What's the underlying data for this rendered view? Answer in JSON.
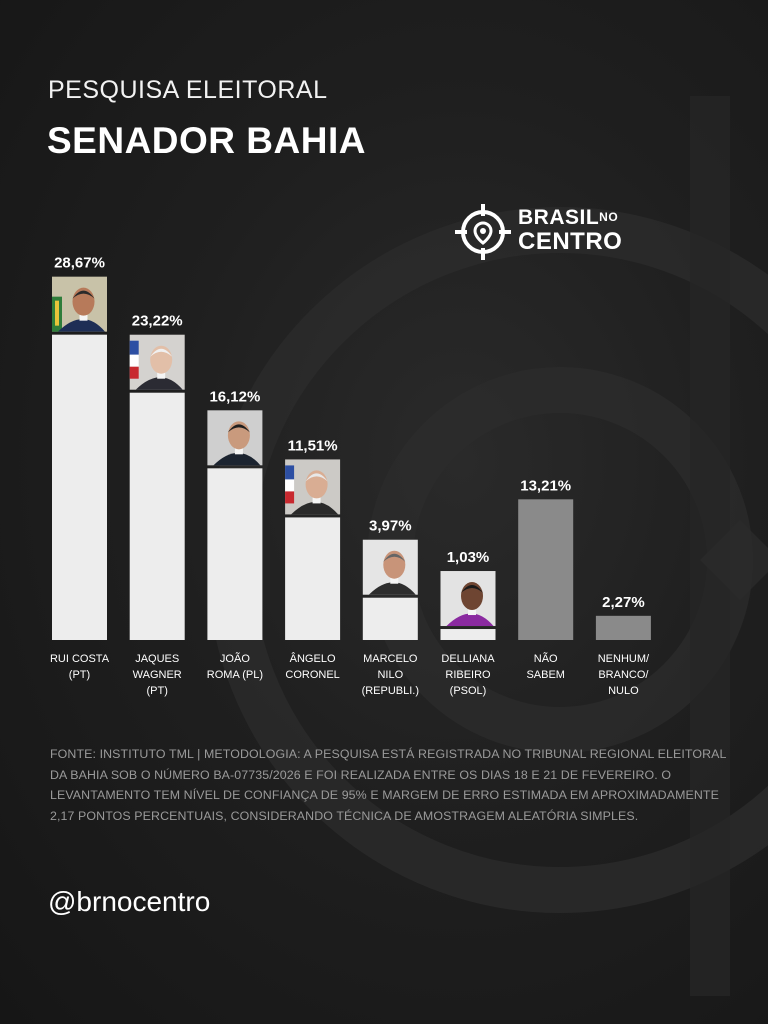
{
  "header": {
    "kicker": "PESQUISA ELEITORAL",
    "title": "SENADOR BAHIA"
  },
  "brand": {
    "line1": "BRASIL",
    "line1_small": "NO",
    "line2": "CENTRO"
  },
  "colors": {
    "background": "#1f1f1f",
    "candidate_bar": "#ededed",
    "other_bar": "#8a8a8a",
    "text": "#ffffff",
    "note_text": "#9a9a9a"
  },
  "chart_data": {
    "type": "bar",
    "title": "SENADOR BAHIA",
    "xlabel": "",
    "ylabel": "",
    "grid": false,
    "ylim": [
      0,
      30
    ],
    "categories": [
      [
        "RUI COSTA",
        "(PT)"
      ],
      [
        "JAQUES",
        "WAGNER",
        "(PT)"
      ],
      [
        "JOÃO",
        "ROMA (PL)"
      ],
      [
        "ÂNGELO",
        "CORONEL"
      ],
      [
        "MARCELO",
        "NILO",
        "(REPUBLI.)"
      ],
      [
        "DELLIANA",
        "RIBEIRO",
        "(PSOL)"
      ],
      [
        "NÃO",
        "SABEM"
      ],
      [
        "NENHUM/",
        "BRANCO/",
        "NULO"
      ]
    ],
    "values": [
      28.67,
      23.22,
      16.12,
      11.51,
      3.97,
      1.03,
      13.21,
      2.27
    ],
    "value_labels": [
      "28,67%",
      "23,22%",
      "16,12%",
      "11,51%",
      "3,97%",
      "1,03%",
      "13,21%",
      "2,27%"
    ],
    "has_photo": [
      true,
      true,
      true,
      true,
      true,
      true,
      false,
      false
    ],
    "bar_colors": [
      "#ededed",
      "#ededed",
      "#ededed",
      "#ededed",
      "#ededed",
      "#ededed",
      "#8a8a8a",
      "#8a8a8a"
    ]
  },
  "footer": {
    "methodology": "FONTE: INSTITUTO TML | METODOLOGIA: A PESQUISA ESTÁ REGISTRADA NO TRIBUNAL REGIONAL ELEITORAL DA BAHIA SOB O NÚMERO BA-07735/2026 E FOI REALIZADA ENTRE OS DIAS 18 E 21 DE FEVEREIRO. O LEVANTAMENTO TEM NÍVEL DE CONFIANÇA DE 95% E MARGEM DE ERRO ESTIMADA EM APROXIMADAMENTE 2,17 PONTOS PERCENTUAIS, CONSIDERANDO TÉCNICA DE AMOSTRAGEM ALEATÓRIA SIMPLES.",
    "handle": "@brnocentro"
  }
}
